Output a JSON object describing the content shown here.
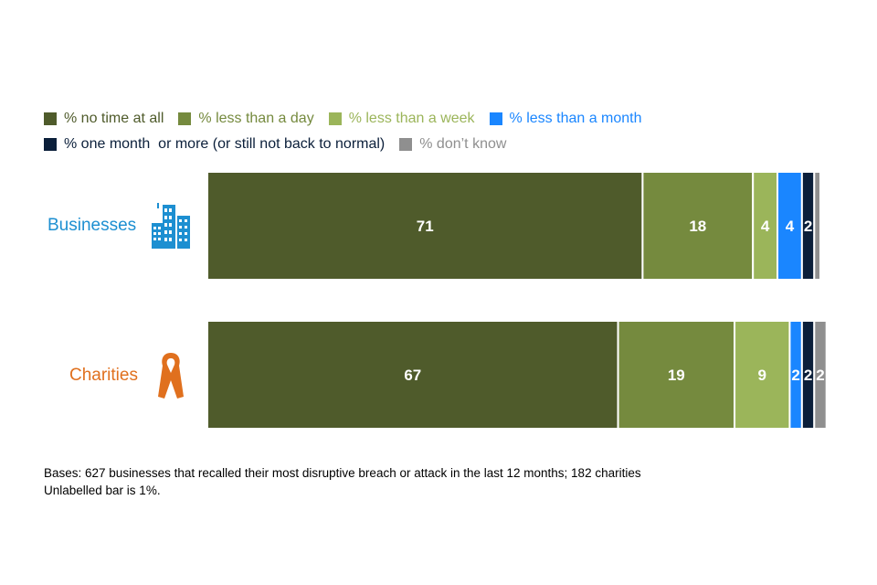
{
  "chart_data": {
    "type": "bar",
    "orientation": "horizontal",
    "stacked": true,
    "categories": [
      "Businesses",
      "Charities"
    ],
    "series": [
      {
        "name": "% no time at all",
        "color": "#4f5b2b",
        "values": [
          71,
          67
        ],
        "labels": [
          "71",
          "67"
        ]
      },
      {
        "name": "% less than a day",
        "color": "#758a3e",
        "values": [
          18,
          19
        ],
        "labels": [
          "18",
          "19"
        ]
      },
      {
        "name": "% less than a week",
        "color": "#9bb55a",
        "values": [
          4,
          9
        ],
        "labels": [
          "4",
          "9"
        ]
      },
      {
        "name": "% less than a month",
        "color": "#1a86ff",
        "values": [
          4,
          2
        ],
        "labels": [
          "4",
          "2"
        ]
      },
      {
        "name": "% one month  or more (or still not back to normal)",
        "color": "#0b1f3a",
        "values": [
          2,
          2
        ],
        "labels": [
          "2",
          "2"
        ]
      },
      {
        "name": "% don’t know",
        "color": "#8f8f8f",
        "values": [
          1,
          2
        ],
        "labels": [
          "",
          "2"
        ]
      }
    ],
    "legend_position": "top-left",
    "grid": false,
    "xlim": [
      0,
      100
    ]
  },
  "category_colors": {
    "Businesses": "#1d8fd1",
    "Charities": "#e0701e"
  },
  "category_icons": {
    "Businesses": "office-building-icon",
    "Charities": "charity-ribbon-icon"
  },
  "notes": {
    "bases": "Bases: 627 businesses that recalled their most disruptive breach or attack in the last 12 months; 182 charities",
    "unlabelled": "Unlabelled bar is 1%."
  }
}
